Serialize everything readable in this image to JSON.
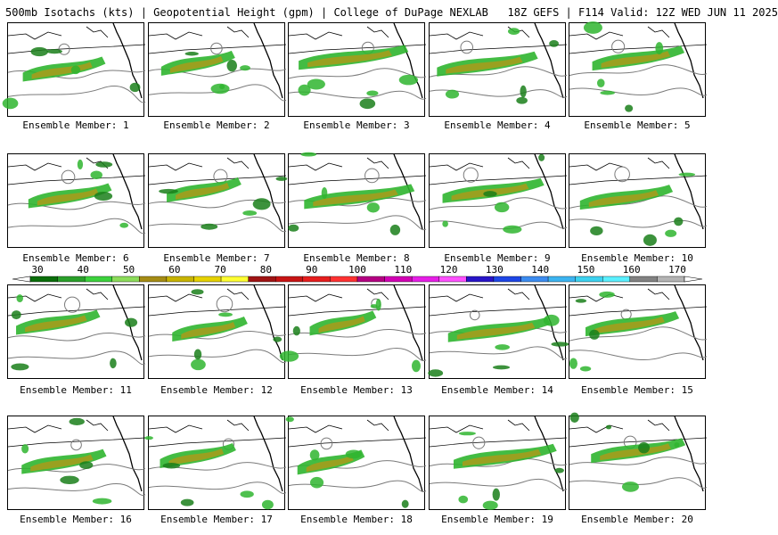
{
  "header": {
    "title": "500mb Isotachs (kts) | Geopotential Height (gpm) | College of DuPage NEXLAB   18Z GEFS | F114 Valid: 12Z WED JUN 11 2025"
  },
  "members": [
    {
      "label": "Ensemble Member: 1"
    },
    {
      "label": "Ensemble Member: 2"
    },
    {
      "label": "Ensemble Member: 3"
    },
    {
      "label": "Ensemble Member: 4"
    },
    {
      "label": "Ensemble Member: 5"
    },
    {
      "label": "Ensemble Member: 6"
    },
    {
      "label": "Ensemble Member: 7"
    },
    {
      "label": "Ensemble Member: 8"
    },
    {
      "label": "Ensemble Member: 9"
    },
    {
      "label": "Ensemble Member: 10"
    },
    {
      "label": "Ensemble Member: 11"
    },
    {
      "label": "Ensemble Member: 12"
    },
    {
      "label": "Ensemble Member: 13"
    },
    {
      "label": "Ensemble Member: 14"
    },
    {
      "label": "Ensemble Member: 15"
    },
    {
      "label": "Ensemble Member: 16"
    },
    {
      "label": "Ensemble Member: 17"
    },
    {
      "label": "Ensemble Member: 18"
    },
    {
      "label": "Ensemble Member: 19"
    },
    {
      "label": "Ensemble Member: 20"
    }
  ],
  "colorbar": {
    "ticks": [
      "30",
      "40",
      "50",
      "60",
      "70",
      "80",
      "90",
      "100",
      "110",
      "120",
      "130",
      "140",
      "150",
      "160",
      "170"
    ],
    "colors": [
      "#0a6e0a",
      "#2aa02a",
      "#3cd23c",
      "#8cdc5a",
      "#a58c14",
      "#c8b400",
      "#e6d200",
      "#ffff32",
      "#a01414",
      "#c81414",
      "#e61e1e",
      "#ff3232",
      "#b40082",
      "#d200b4",
      "#e61ee6",
      "#ff50ff",
      "#2814c8",
      "#1e46e6",
      "#3c8cf0",
      "#3cb4f0",
      "#3cd2f0",
      "#5af0ff",
      "#828282",
      "#b4b4b4"
    ]
  },
  "map": {
    "jet_colors": [
      "#1a7f1a",
      "#2fb52f",
      "#9aa020",
      "#c8b400",
      "#a01414"
    ],
    "height_contour_color": "#7a7a7a",
    "boundary_color": "#000000"
  }
}
